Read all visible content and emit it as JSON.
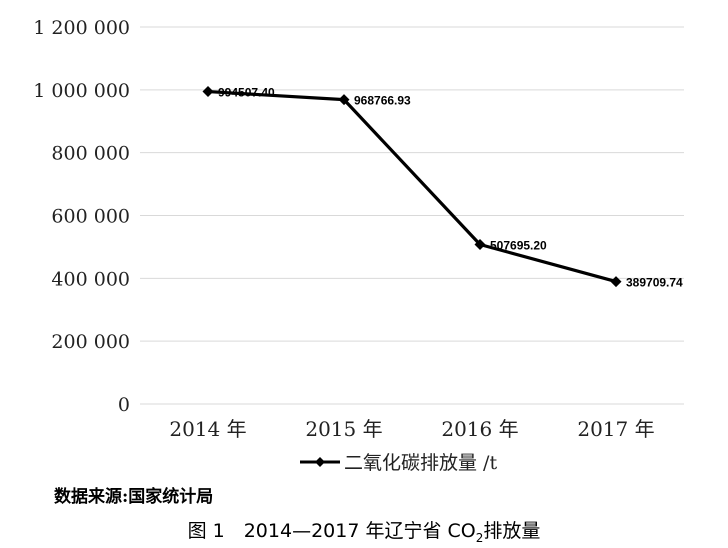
{
  "chart_data": {
    "type": "line",
    "categories": [
      "2014 年",
      "2015 年",
      "2016 年",
      "2017 年"
    ],
    "series": [
      {
        "name": "二氧化碳排放量 /t",
        "values": [
          994507.4,
          968766.93,
          507695.2,
          389709.74
        ],
        "labels": [
          "994507.40",
          "968766.93",
          "507695.20",
          "389709.74"
        ]
      }
    ],
    "y_ticks": [
      "0",
      "200 000",
      "400 000",
      "600 000",
      "800 000",
      "1 000 000",
      "1 200 000"
    ],
    "y_tick_values": [
      0,
      200000,
      400000,
      600000,
      800000,
      1000000,
      1200000
    ],
    "ylim": [
      0,
      1200000
    ],
    "grid": true,
    "legend_position": "bottom",
    "colors": {
      "line": "#000000",
      "grid": "#d9d9d9"
    }
  },
  "source_text": "数据来源:国家统计局",
  "caption": {
    "prefix": "图 1　2014—2017 年辽宁省 CO",
    "sub": "2",
    "suffix": "排放量"
  }
}
